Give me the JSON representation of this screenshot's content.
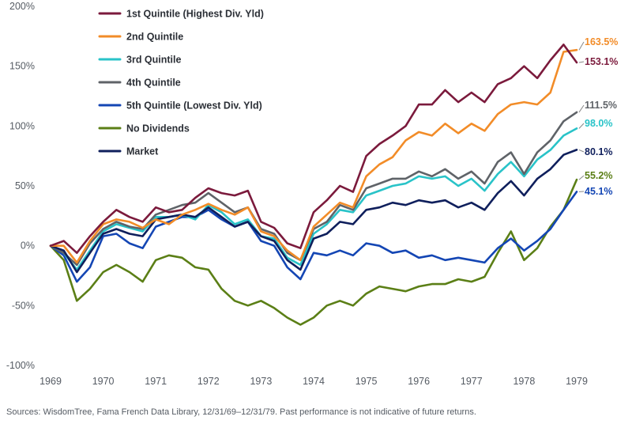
{
  "chart_data": {
    "type": "line",
    "title": "",
    "xlabel": "",
    "ylabel": "",
    "ylim": [
      -100,
      200
    ],
    "y_ticks": [
      -100,
      -50,
      0,
      50,
      100,
      150,
      200
    ],
    "y_tick_labels": [
      "-100%",
      "-50%",
      "0%",
      "50%",
      "100%",
      "150%",
      "200%"
    ],
    "xlim": [
      1969,
      1979
    ],
    "x_ticks": [
      "1969",
      "1970",
      "1971",
      "1972",
      "1973",
      "1974",
      "1975",
      "1976",
      "1977",
      "1978",
      "1979"
    ],
    "grid": false,
    "legend_position": "top-left",
    "x": [
      1969.0,
      1969.25,
      1969.5,
      1969.75,
      1970.0,
      1970.25,
      1970.5,
      1970.75,
      1971.0,
      1971.25,
      1971.5,
      1971.75,
      1972.0,
      1972.25,
      1972.5,
      1972.75,
      1973.0,
      1973.25,
      1973.5,
      1973.75,
      1974.0,
      1974.25,
      1974.5,
      1974.75,
      1975.0,
      1975.25,
      1975.5,
      1975.75,
      1976.0,
      1976.25,
      1976.5,
      1976.75,
      1977.0,
      1977.25,
      1977.5,
      1977.75,
      1978.0,
      1978.25,
      1978.5,
      1978.75,
      1979.0
    ],
    "series": [
      {
        "name": "1st Quintile (Highest Div. Yld)",
        "color": "#7b1a3c",
        "end_label": "153.1%",
        "values": [
          0,
          4,
          -6,
          8,
          20,
          30,
          24,
          20,
          32,
          28,
          30,
          40,
          48,
          44,
          42,
          46,
          20,
          15,
          2,
          -2,
          28,
          38,
          50,
          45,
          75,
          85,
          92,
          100,
          118,
          118,
          130,
          120,
          128,
          120,
          135,
          140,
          150,
          140,
          155,
          168,
          153.1
        ]
      },
      {
        "name": "2nd Quintile",
        "color": "#f28c28",
        "end_label": "163.5%",
        "values": [
          0,
          0,
          -14,
          4,
          18,
          22,
          20,
          15,
          22,
          18,
          26,
          30,
          35,
          30,
          26,
          32,
          12,
          8,
          -4,
          -12,
          16,
          26,
          36,
          32,
          58,
          68,
          74,
          88,
          95,
          92,
          102,
          94,
          102,
          96,
          110,
          118,
          120,
          118,
          128,
          162,
          163.5
        ]
      },
      {
        "name": "3rd Quintile",
        "color": "#29c3c8",
        "end_label": "98.0%",
        "values": [
          0,
          -6,
          -20,
          -4,
          12,
          18,
          15,
          12,
          24,
          24,
          26,
          22,
          34,
          28,
          18,
          22,
          8,
          6,
          -10,
          -16,
          10,
          18,
          30,
          28,
          42,
          46,
          50,
          52,
          58,
          56,
          58,
          50,
          56,
          46,
          60,
          70,
          58,
          72,
          80,
          92,
          98.0
        ]
      },
      {
        "name": "4th Quintile",
        "color": "#5f6368",
        "end_label": "111.5%",
        "values": [
          0,
          -6,
          -16,
          2,
          14,
          20,
          16,
          14,
          26,
          30,
          34,
          36,
          44,
          36,
          28,
          32,
          14,
          10,
          -6,
          -12,
          14,
          20,
          34,
          30,
          48,
          52,
          56,
          56,
          62,
          58,
          64,
          56,
          62,
          52,
          70,
          78,
          60,
          78,
          88,
          104,
          111.5
        ]
      },
      {
        "name": "5th Quintile (Lowest Div. Yld)",
        "color": "#1446b4",
        "end_label": "45.1%",
        "values": [
          0,
          -8,
          -30,
          -18,
          8,
          10,
          2,
          -2,
          16,
          20,
          24,
          24,
          30,
          22,
          16,
          20,
          4,
          0,
          -18,
          -28,
          -6,
          -8,
          -4,
          -8,
          2,
          0,
          -6,
          -4,
          -10,
          -8,
          -12,
          -10,
          -12,
          -14,
          -2,
          6,
          -4,
          4,
          14,
          30,
          45.1
        ]
      },
      {
        "name": "No Dividends",
        "color": "#5b7f16",
        "end_label": "55.2%",
        "values": [
          0,
          -12,
          -46,
          -36,
          -22,
          -16,
          -22,
          -30,
          -12,
          -8,
          -10,
          -18,
          -20,
          -36,
          -46,
          -50,
          -46,
          -52,
          -60,
          -66,
          -60,
          -50,
          -46,
          -50,
          -40,
          -34,
          -36,
          -38,
          -34,
          -32,
          -32,
          -28,
          -30,
          -26,
          -6,
          12,
          -12,
          -2,
          16,
          30,
          55.2
        ]
      },
      {
        "name": "Market",
        "color": "#0f1f5c",
        "end_label": "80.1%",
        "values": [
          0,
          -4,
          -22,
          -6,
          10,
          14,
          10,
          8,
          22,
          24,
          26,
          24,
          32,
          24,
          16,
          20,
          8,
          4,
          -12,
          -20,
          6,
          10,
          20,
          18,
          30,
          32,
          36,
          34,
          38,
          36,
          38,
          32,
          36,
          30,
          44,
          54,
          42,
          56,
          64,
          76,
          80.1
        ]
      }
    ]
  },
  "source_text": "Sources: WisdomTree, Fama French Data Library, 12/31/69–12/31/79. Past performance is not indicative of future returns."
}
